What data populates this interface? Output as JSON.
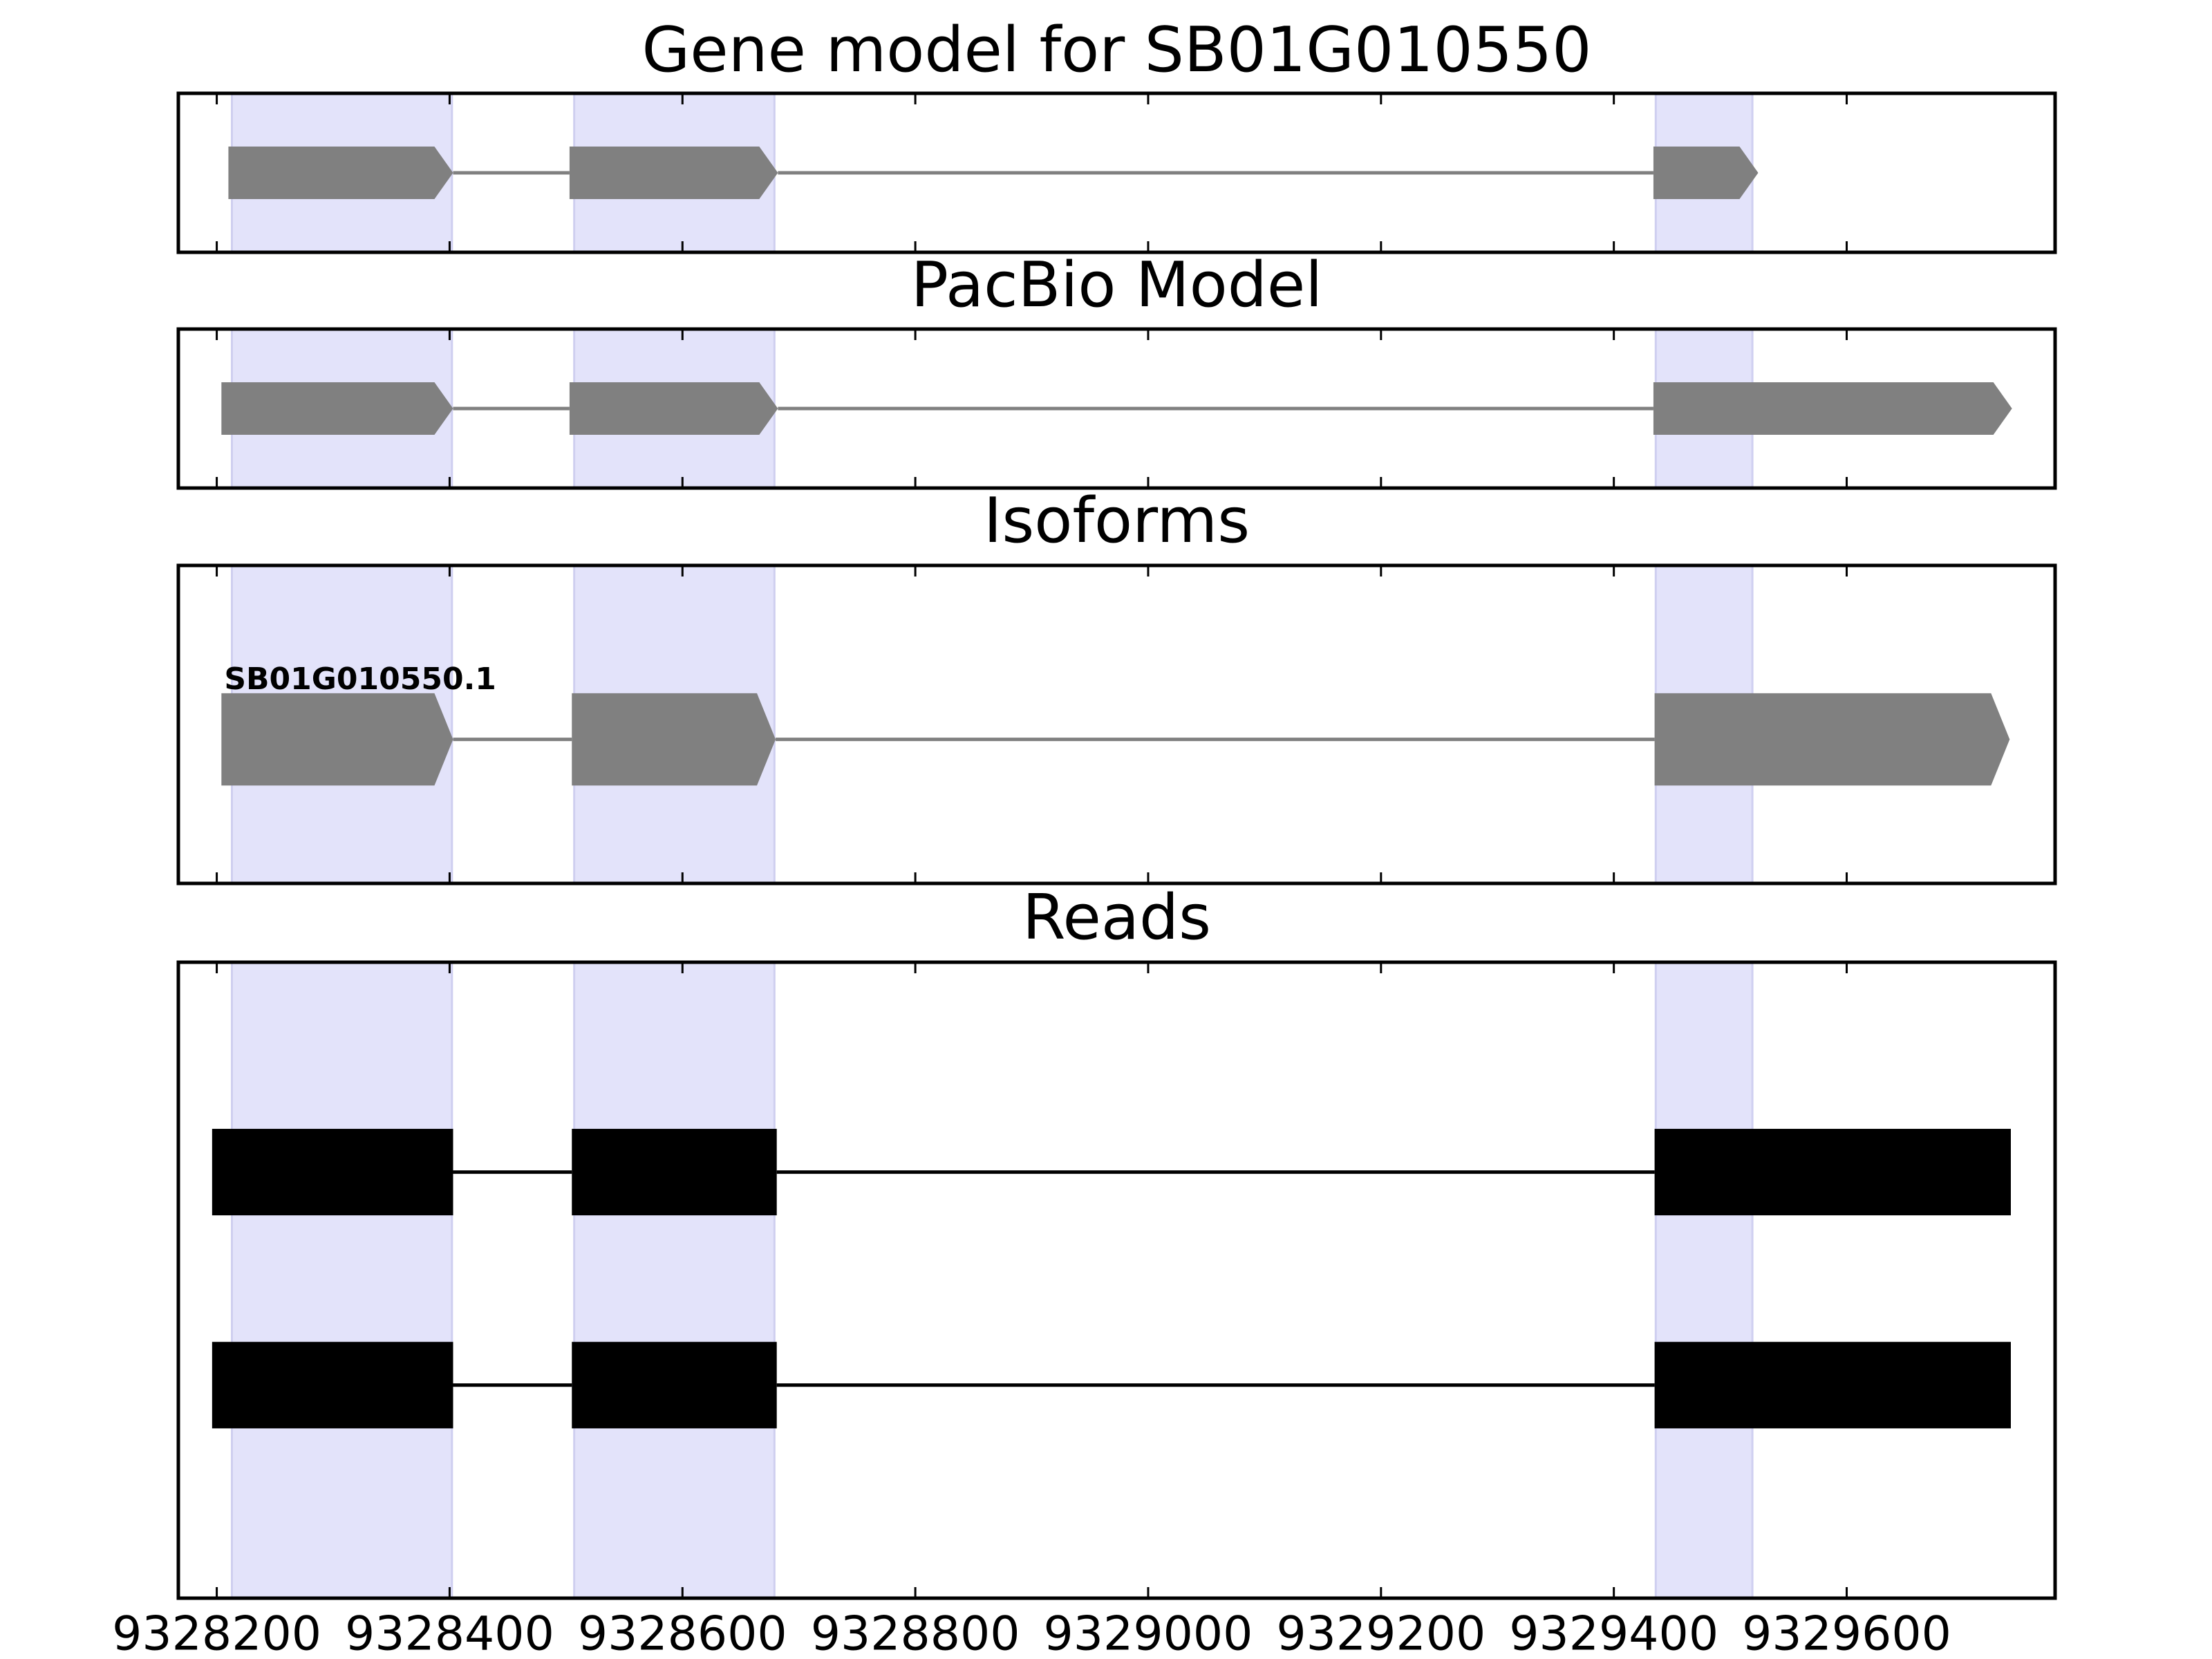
{
  "chart_data": {
    "type": "gene-tracks",
    "xlim": [
      9328167,
      9329779
    ],
    "xticks": [
      9328200,
      9328400,
      9328600,
      9328800,
      9329000,
      9329200,
      9329400,
      9329600
    ],
    "highlights": [
      [
        9328213,
        9328402
      ],
      [
        9328507,
        9328679
      ],
      [
        9329436,
        9329519
      ]
    ],
    "panels": [
      {
        "type": "gene",
        "title": "Gene model for SB01G010550",
        "color": "#808080",
        "exons": [
          [
            9328210,
            9328403
          ],
          [
            9328503,
            9328682
          ],
          [
            9329434,
            9329524
          ]
        ]
      },
      {
        "type": "gene",
        "title": "PacBio Model",
        "color": "#808080",
        "exons": [
          [
            9328204,
            9328403
          ],
          [
            9328503,
            9328682
          ],
          [
            9329434,
            9329742
          ]
        ]
      },
      {
        "type": "isoforms",
        "title": "Isoforms",
        "color": "#808080",
        "isoforms": [
          {
            "name": "SB01G010550.1",
            "exons": [
              [
                9328204,
                9328403
              ],
              [
                9328505,
                9328680
              ],
              [
                9329435,
                9329740
              ]
            ]
          }
        ]
      },
      {
        "type": "reads",
        "title": "Reads",
        "color": "#000000",
        "reads": [
          [
            [
              9328196,
              9328403
            ],
            [
              9328505,
              9328681
            ],
            [
              9329435,
              9329741
            ]
          ],
          [
            [
              9328196,
              9328403
            ],
            [
              9328505,
              9328681
            ],
            [
              9329435,
              9329741
            ]
          ]
        ]
      }
    ]
  }
}
